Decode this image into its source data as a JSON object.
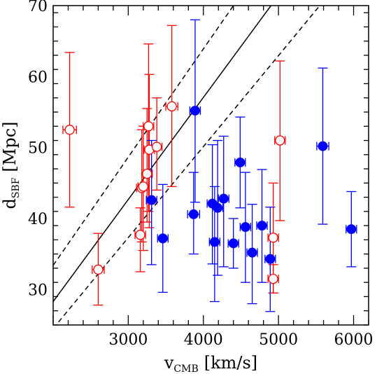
{
  "chart_data": {
    "type": "scatter",
    "xlabel": "v",
    "xlabel_sub": "CMB",
    "xlabel_unit": "[km/s]",
    "ylabel": "d",
    "ylabel_sub": "SBF",
    "ylabel_unit": "[Mpc]",
    "xlim": [
      2000,
      6200
    ],
    "ylim": [
      25,
      70
    ],
    "xticks": [
      3000,
      4000,
      5000,
      6000
    ],
    "yticks": [
      30,
      40,
      50,
      60,
      70
    ],
    "grid": false,
    "legend": "none",
    "colors": {
      "open": "#ff0000",
      "filled": "#0000ff",
      "axes": "#000000"
    },
    "lines": [
      {
        "style": "solid",
        "points": [
          [
            2000,
            28.3
          ],
          [
            4900,
            70
          ]
        ]
      },
      {
        "style": "dashed",
        "points": [
          [
            2000,
            33.4
          ],
          [
            4400,
            70
          ]
        ]
      },
      {
        "style": "dashed",
        "points": [
          [
            2000,
            24.5
          ],
          [
            5550,
            70
          ]
        ]
      }
    ],
    "series": [
      {
        "marker": "open-circle",
        "color": "#ff0000",
        "points": [
          {
            "x": 2220,
            "y": 52.5,
            "yerr": [
              41.6,
              63.4
            ],
            "xerr": 90
          },
          {
            "x": 2600,
            "y": 32.8,
            "yerr": [
              27.8,
              37.9
            ],
            "xerr": 80
          },
          {
            "x": 3160,
            "y": 37.7,
            "yerr": [
              32.5,
              41.5
            ],
            "xerr": 70
          },
          {
            "x": 3180,
            "y": 44.3,
            "yerr": [
              36.7,
              52.5
            ],
            "xerr": 70
          },
          {
            "x": 3200,
            "y": 44.5,
            "yerr": [
              35.5,
              53.0
            ],
            "xerr": 70
          },
          {
            "x": 3250,
            "y": 46.3,
            "yerr": [
              39.5,
              55.5
            ],
            "xerr": 70
          },
          {
            "x": 3270,
            "y": 53.0,
            "yerr": [
              41.0,
              64.6
            ],
            "xerr": 70
          },
          {
            "x": 3280,
            "y": 49.7,
            "yerr": [
              38.7,
              60.3
            ],
            "xerr": 70
          },
          {
            "x": 3380,
            "y": 50.1,
            "yerr": [
              44.0,
              57.0
            ],
            "xerr": 70
          },
          {
            "x": 3580,
            "y": 55.8,
            "yerr": [
              44.5,
              67.2
            ],
            "xerr": 80
          },
          {
            "x": 4930,
            "y": 37.3,
            "yerr": [
              29.5,
              45.0
            ],
            "xerr": 70
          },
          {
            "x": 4930,
            "y": 31.5,
            "yerr": [
              29.5,
              33.5
            ],
            "xerr": 70
          },
          {
            "x": 5020,
            "y": 51.0,
            "yerr": [
              39.7,
              62.2
            ],
            "xerr": 70
          }
        ]
      },
      {
        "marker": "filled-circle",
        "color": "#0000ff",
        "points": [
          {
            "x": 3310,
            "y": 42.6,
            "yerr": [
              33.5,
              51.0
            ],
            "xerr": 70
          },
          {
            "x": 3460,
            "y": 37.2,
            "yerr": [
              29.6,
              44.8
            ],
            "xerr": 70
          },
          {
            "x": 3870,
            "y": 40.6,
            "yerr": [
              35.0,
              46.5
            ],
            "xerr": 80
          },
          {
            "x": 3890,
            "y": 55.2,
            "yerr": [
              42.3,
              68.0
            ],
            "xerr": 70
          },
          {
            "x": 4120,
            "y": 42.1,
            "yerr": [
              33.6,
              50.4
            ],
            "xerr": 70
          },
          {
            "x": 4150,
            "y": 36.7,
            "yerr": [
              28.3,
              44.5
            ],
            "xerr": 70
          },
          {
            "x": 4190,
            "y": 41.5,
            "yerr": [
              32.0,
              51.0
            ],
            "xerr": 70
          },
          {
            "x": 4270,
            "y": 42.8,
            "yerr": [
              33.2,
              51.6
            ],
            "xerr": 70
          },
          {
            "x": 4400,
            "y": 36.5,
            "yerr": [
              33.0,
              40.0
            ],
            "xerr": 70
          },
          {
            "x": 4490,
            "y": 47.9,
            "yerr": [
              41.5,
              54.3
            ],
            "xerr": 70
          },
          {
            "x": 4560,
            "y": 38.8,
            "yerr": [
              31.0,
              46.5
            ],
            "xerr": 70
          },
          {
            "x": 4650,
            "y": 35.2,
            "yerr": [
              28.0,
              42.0
            ],
            "xerr": 70
          },
          {
            "x": 4780,
            "y": 39.0,
            "yerr": [
              31.0,
              46.9
            ],
            "xerr": 70
          },
          {
            "x": 4890,
            "y": 34.3,
            "yerr": [
              26.9,
              41.6
            ],
            "xerr": 70
          },
          {
            "x": 5590,
            "y": 50.2,
            "yerr": [
              39.2,
              61.2
            ],
            "xerr": 80
          },
          {
            "x": 5970,
            "y": 38.5,
            "yerr": [
              33.2,
              43.8
            ],
            "xerr": 70
          }
        ]
      }
    ]
  }
}
